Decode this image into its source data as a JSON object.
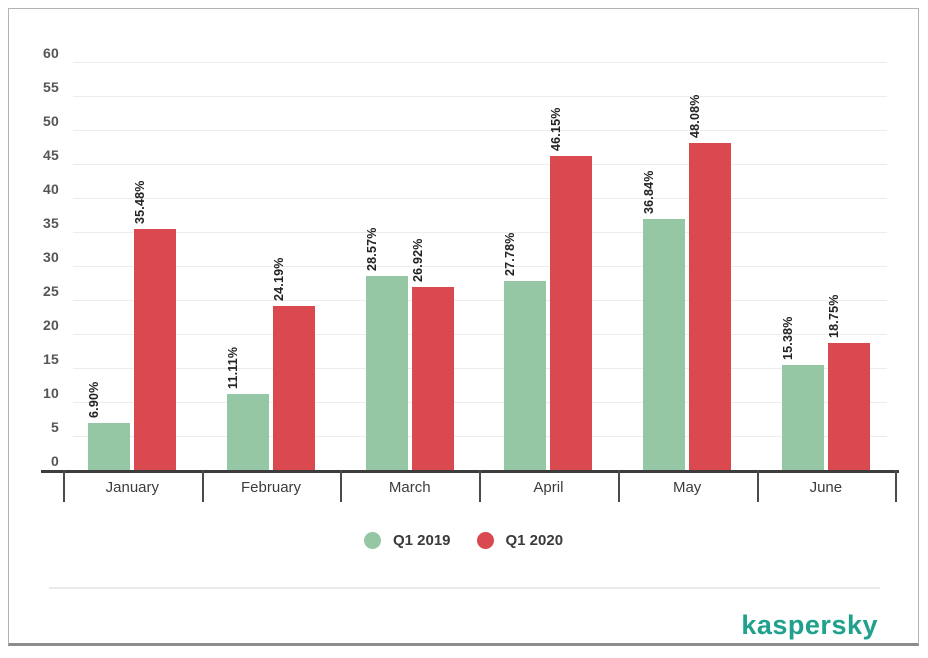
{
  "chart_data": {
    "type": "bar",
    "categories": [
      "January",
      "February",
      "March",
      "April",
      "May",
      "June"
    ],
    "series": [
      {
        "name": "Q1 2019",
        "color": "#95c7a4",
        "values": [
          6.9,
          11.11,
          28.57,
          27.78,
          36.84,
          15.38
        ],
        "labels": [
          "6.90%",
          "11.11%",
          "28.57%",
          "27.78%",
          "36.84%",
          "15.38%"
        ]
      },
      {
        "name": "Q1 2020",
        "color": "#d9494f",
        "values": [
          35.48,
          24.19,
          26.92,
          46.15,
          48.08,
          18.75
        ],
        "labels": [
          "35.48%",
          "24.19%",
          "26.92%",
          "46.15%",
          "48.08%",
          "18.75%"
        ]
      }
    ],
    "title": "",
    "xlabel": "",
    "ylabel": "",
    "ylim": [
      0,
      60
    ],
    "ytick_step": 5,
    "yticks": [
      "0",
      "5",
      "10",
      "15",
      "20",
      "25",
      "30",
      "35",
      "40",
      "45",
      "50",
      "55",
      "60"
    ],
    "grid": true,
    "legend_position": "bottom",
    "data_label_rotation": 90
  },
  "branding": {
    "logo_text": "kaspersky",
    "logo_color": "#1fa18d"
  }
}
